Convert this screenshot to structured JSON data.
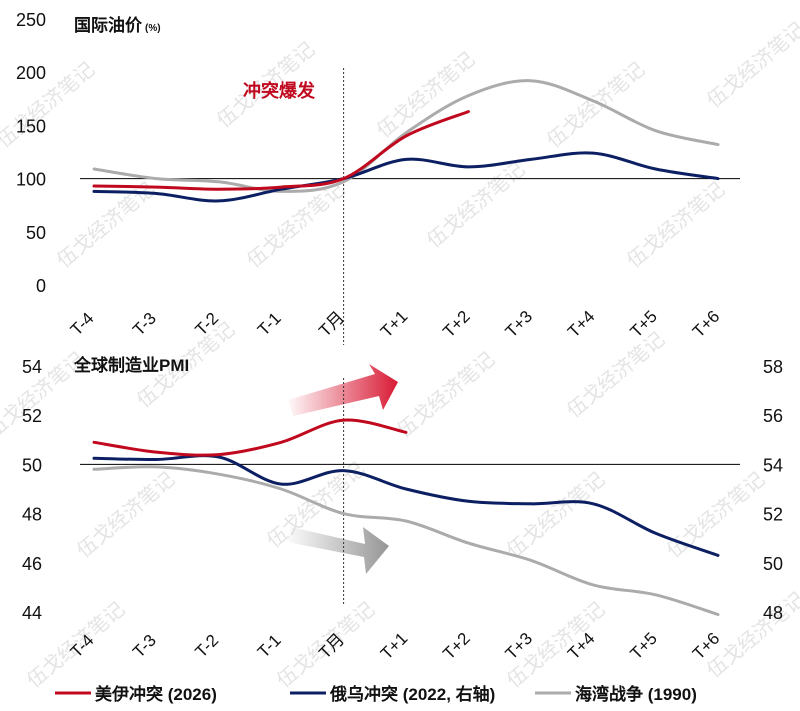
{
  "chart_data": [
    {
      "type": "line",
      "title": "国际油价",
      "title_unit": "(%)",
      "categories": [
        "T-4",
        "T-3",
        "T-2",
        "T-1",
        "T月",
        "T+1",
        "T+2",
        "T+3",
        "T+4",
        "T+5",
        "T+6"
      ],
      "ylim": [
        0,
        250
      ],
      "y_ticks": [
        0,
        50,
        100,
        150,
        200,
        250
      ],
      "reference_line": 100,
      "event_marker": "T月",
      "annotation": "冲突爆发",
      "grid": false,
      "series": [
        {
          "name": "美伊冲突",
          "color": "#c0091e",
          "values": [
            93,
            92,
            90,
            92,
            100,
            140,
            163,
            null,
            null,
            null,
            null
          ]
        },
        {
          "name": "俄乌冲突",
          "color": "#0d1f63",
          "values": [
            88,
            86,
            79,
            90,
            100,
            118,
            111,
            118,
            124,
            109,
            100
          ]
        },
        {
          "name": "海湾战争",
          "color": "#ababab",
          "values": [
            109,
            100,
            97,
            88,
            97,
            143,
            178,
            192,
            173,
            145,
            132
          ]
        }
      ]
    },
    {
      "type": "line",
      "title": "全球制造业PMI",
      "categories": [
        "T-4",
        "T-3",
        "T-2",
        "T-1",
        "T月",
        "T+1",
        "T+2",
        "T+3",
        "T+4",
        "T+5",
        "T+6"
      ],
      "ylim": [
        44,
        54
      ],
      "y_ticks": [
        44,
        46,
        48,
        50,
        52,
        54
      ],
      "y2lim": [
        48,
        58
      ],
      "y2_ticks": [
        48,
        50,
        52,
        54,
        56,
        58
      ],
      "reference_line": 50,
      "event_marker": "T月",
      "grid": false,
      "series": [
        {
          "name": "美伊冲突",
          "color": "#c0091e",
          "axis": "left",
          "values": [
            50.9,
            50.5,
            50.4,
            50.9,
            51.8,
            51.3,
            null,
            null,
            null,
            null,
            null
          ]
        },
        {
          "name": "俄乌冲突",
          "color": "#0d1f63",
          "axis": "right",
          "values": [
            54.25,
            54.2,
            54.3,
            53.2,
            53.75,
            53.0,
            52.5,
            52.4,
            52.4,
            51.2,
            50.3
          ]
        },
        {
          "name": "海湾战争",
          "color": "#ababab",
          "axis": "left",
          "values": [
            49.8,
            49.9,
            49.6,
            49.0,
            48.0,
            47.7,
            46.8,
            46.1,
            45.1,
            44.7,
            43.9
          ]
        }
      ]
    }
  ],
  "legend": {
    "items": [
      {
        "label": "美伊冲突 (2026)",
        "color": "#c0091e"
      },
      {
        "label": "俄乌冲突 (2022, 右轴)",
        "color": "#0d1f63"
      },
      {
        "label": "海湾战争 (1990)",
        "color": "#ababab"
      }
    ]
  },
  "watermark": "伍戈经济笔记"
}
